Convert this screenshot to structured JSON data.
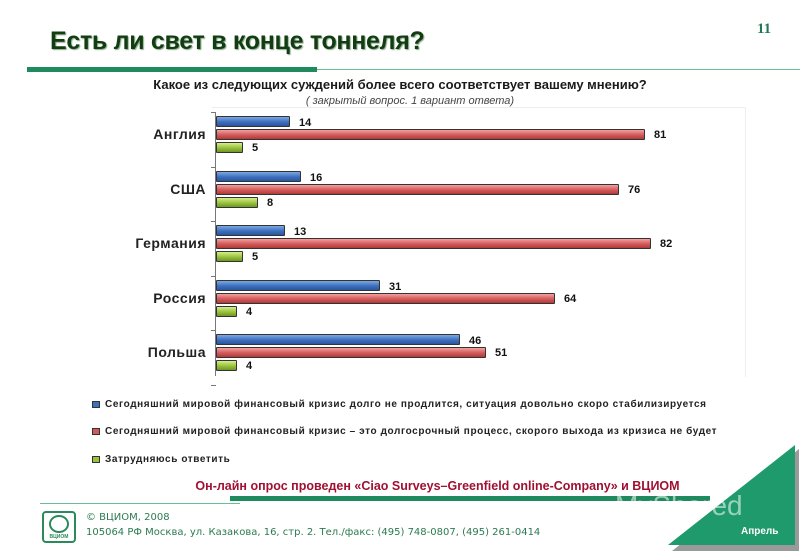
{
  "slide": {
    "title": "Есть ли свет в конце тоннеля?",
    "page_number": "11",
    "question": "Какое из следующих суждений  более всего соответствует вашему мнению?",
    "question_note": "( закрытый вопрос. 1 вариант ответа)",
    "survey_note": "Он-лайн опрос проведен «Ciao Surveys–Greenfield online-Company» и ВЦИОМ",
    "month_label": "Апрель",
    "watermark": "MyShared"
  },
  "footer": {
    "logo_text": "ВЦИОМ",
    "copyright": "© ВЦИОМ, 2008",
    "address": "105064  РФ Москва, ул. Казакова, 16, стр. 2.  Тел./факс: (495) 748-0807,  (495) 261-0414"
  },
  "legend": [
    {
      "label": "Сегодняшний мировой финансовый кризис долго не продлится, ситуация довольно скоро стабилизируется",
      "color": "#3d6fbf"
    },
    {
      "label": "Сегодняшний мировой финансовый кризис – это долгосрочный процесс, скорого выхода из кризиса не будет",
      "color": "#d35a5a"
    },
    {
      "label": "Затрудняюсь ответить",
      "color": "#98c23c"
    }
  ],
  "chart_data": {
    "type": "bar",
    "orientation": "horizontal",
    "title": "Какое из следующих суждений  более всего соответствует вашему мнению?",
    "subtitle": "( закрытый вопрос. 1 вариант ответа)",
    "xlabel": "",
    "ylabel": "",
    "categories": [
      "Англия",
      "США",
      "Германия",
      "Россия",
      "Польша"
    ],
    "series": [
      {
        "name": "Сегодняшний мировой финансовый кризис долго не продлится, ситуация довольно скоро стабилизируется",
        "color": "#3d6fbf",
        "values": [
          14,
          16,
          13,
          31,
          46
        ]
      },
      {
        "name": "Сегодняшний мировой финансовый кризис – это долгосрочный процесс, скорого выхода из кризиса не будет",
        "color": "#d35a5a",
        "values": [
          81,
          76,
          82,
          64,
          51
        ]
      },
      {
        "name": "Затрудняюсь ответить",
        "color": "#98c23c",
        "values": [
          5,
          8,
          5,
          4,
          4
        ]
      }
    ],
    "data_labels": true,
    "xlim": [
      0,
      100
    ],
    "grid": false,
    "legend_position": "bottom"
  }
}
